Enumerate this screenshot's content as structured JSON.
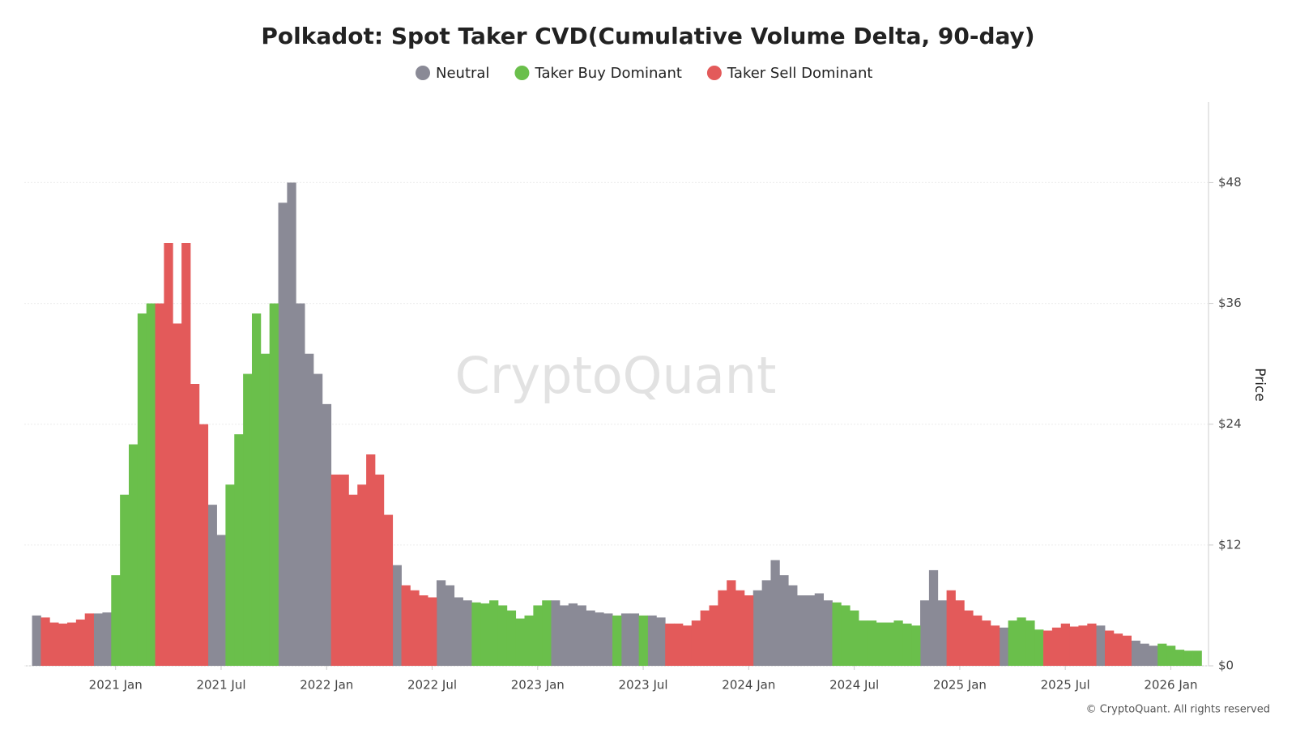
{
  "chart_data": {
    "type": "bar",
    "title": "Polkadot: Spot Taker CVD(Cumulative Volume Delta, 90-day)",
    "y_label": "Price",
    "watermark": "CryptoQuant",
    "copyright": "© CryptoQuant. All rights reserved",
    "categories": [
      null,
      null,
      null,
      null,
      null,
      null,
      null,
      null,
      null,
      "2021 Jan",
      null,
      null,
      null,
      null,
      null,
      null,
      null,
      null,
      null,
      null,
      null,
      "2021 Jul",
      null,
      null,
      null,
      null,
      null,
      null,
      null,
      null,
      null,
      null,
      null,
      "2022 Jan",
      null,
      null,
      null,
      null,
      null,
      null,
      null,
      null,
      null,
      null,
      null,
      "2022 Jul",
      null,
      null,
      null,
      null,
      null,
      null,
      null,
      null,
      null,
      null,
      null,
      "2023 Jan",
      null,
      null,
      null,
      null,
      null,
      null,
      null,
      null,
      null,
      null,
      null,
      "2023 Jul",
      null,
      null,
      null,
      null,
      null,
      null,
      null,
      null,
      null,
      null,
      null,
      "2024 Jan",
      null,
      null,
      null,
      null,
      null,
      null,
      null,
      null,
      null,
      null,
      null,
      "2024 Jul",
      null,
      null,
      null,
      null,
      null,
      null,
      null,
      null,
      null,
      null,
      null,
      "2025 Jan",
      null,
      null,
      null,
      null,
      null,
      null,
      null,
      null,
      null,
      null,
      null,
      "2025 Jul",
      null,
      null,
      null,
      null,
      null,
      null,
      null,
      null,
      null,
      null,
      null,
      "2026 Jan",
      null,
      null,
      null
    ],
    "series": [
      {
        "name": "Neutral",
        "color": "#8a8a96",
        "values": [
          5,
          null,
          null,
          null,
          null,
          null,
          null,
          5.2,
          5.3,
          null,
          null,
          null,
          null,
          null,
          null,
          null,
          null,
          null,
          null,
          null,
          16,
          13,
          null,
          null,
          null,
          null,
          null,
          null,
          46,
          48,
          36,
          31,
          29,
          26,
          null,
          null,
          null,
          null,
          null,
          null,
          null,
          10,
          null,
          null,
          null,
          null,
          8.5,
          8,
          6.8,
          6.5,
          null,
          null,
          null,
          null,
          null,
          null,
          null,
          null,
          null,
          6.5,
          6,
          6.2,
          6,
          5.5,
          5.3,
          5.2,
          null,
          5.2,
          5.2,
          null,
          5,
          4.8,
          null,
          null,
          null,
          null,
          null,
          null,
          null,
          null,
          null,
          null,
          7.5,
          8.5,
          10.5,
          9,
          8,
          7,
          7,
          7.2,
          6.5,
          null,
          null,
          null,
          null,
          null,
          null,
          null,
          null,
          null,
          null,
          6.5,
          9.5,
          6.5,
          null,
          null,
          null,
          null,
          null,
          null,
          3.8,
          null,
          null,
          null,
          null,
          null,
          null,
          null,
          null,
          null,
          null,
          4,
          null,
          null,
          null,
          2.5,
          2.2,
          2,
          null,
          null,
          null,
          null,
          null
        ]
      },
      {
        "name": "Taker Buy Dominant",
        "color": "#6abf4b",
        "values": [
          null,
          null,
          null,
          null,
          null,
          null,
          null,
          null,
          null,
          9,
          17,
          22,
          35,
          36,
          null,
          null,
          null,
          null,
          null,
          null,
          null,
          null,
          18,
          23,
          29,
          35,
          31,
          36,
          null,
          null,
          null,
          null,
          null,
          null,
          null,
          null,
          null,
          null,
          null,
          null,
          null,
          null,
          null,
          null,
          null,
          null,
          null,
          null,
          null,
          null,
          6.3,
          6.2,
          6.5,
          6,
          5.5,
          4.7,
          5,
          6,
          6.5,
          null,
          null,
          null,
          null,
          null,
          null,
          null,
          5,
          null,
          null,
          5,
          null,
          null,
          null,
          null,
          null,
          null,
          null,
          null,
          null,
          null,
          null,
          null,
          null,
          null,
          null,
          null,
          null,
          null,
          null,
          null,
          null,
          6.3,
          6,
          5.5,
          4.5,
          4.5,
          4.3,
          4.3,
          4.5,
          4.2,
          4,
          null,
          null,
          null,
          null,
          null,
          null,
          null,
          null,
          null,
          null,
          4.5,
          4.8,
          4.5,
          3.6,
          null,
          null,
          null,
          null,
          null,
          null,
          null,
          null,
          null,
          null,
          null,
          null,
          null,
          2.2,
          2,
          1.6,
          1.5,
          1.5
        ]
      },
      {
        "name": "Taker Sell Dominant",
        "color": "#e35a5a",
        "values": [
          null,
          4.8,
          4.3,
          4.2,
          4.3,
          4.6,
          5.2,
          null,
          null,
          null,
          null,
          null,
          null,
          null,
          36,
          42,
          34,
          42,
          28,
          24,
          null,
          null,
          null,
          null,
          null,
          null,
          null,
          null,
          null,
          null,
          null,
          null,
          null,
          null,
          19,
          19,
          17,
          18,
          21,
          19,
          15,
          null,
          8,
          7.5,
          7,
          6.8,
          null,
          null,
          null,
          null,
          null,
          null,
          null,
          null,
          null,
          null,
          null,
          null,
          null,
          null,
          null,
          null,
          null,
          null,
          null,
          null,
          null,
          null,
          null,
          null,
          null,
          null,
          4.2,
          4.2,
          4,
          4.5,
          5.5,
          6,
          7.5,
          8.5,
          7.5,
          7,
          null,
          null,
          null,
          null,
          null,
          null,
          null,
          null,
          null,
          null,
          null,
          null,
          null,
          null,
          null,
          null,
          null,
          null,
          null,
          null,
          null,
          null,
          7.5,
          6.5,
          5.5,
          5,
          4.5,
          4,
          null,
          null,
          null,
          null,
          null,
          3.5,
          3.8,
          4.2,
          3.9,
          4,
          4.2,
          null,
          3.5,
          3.2,
          3,
          null,
          null,
          null,
          null,
          null,
          null,
          null,
          null
        ]
      }
    ],
    "ylim": [
      0,
      56
    ],
    "yticks": [
      {
        "value": 0,
        "label": "$0"
      },
      {
        "value": 12,
        "label": "$12"
      },
      {
        "value": 24,
        "label": "$24"
      },
      {
        "value": 36,
        "label": "$36"
      },
      {
        "value": 48,
        "label": "$48"
      }
    ],
    "grid": true
  }
}
